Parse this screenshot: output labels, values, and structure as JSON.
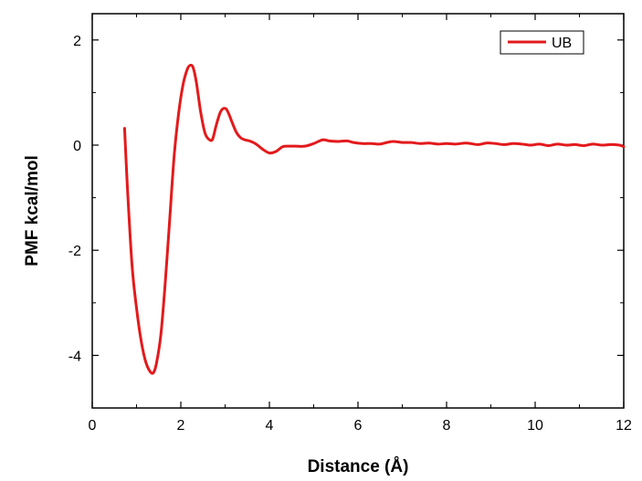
{
  "chart_data": {
    "type": "line",
    "xlabel": "Distance (Å)",
    "ylabel": "PMF kcal/mol",
    "xlim": [
      0,
      12
    ],
    "ylim": [
      -5,
      2.5
    ],
    "x_ticks": [
      0,
      2,
      4,
      6,
      8,
      10,
      12
    ],
    "y_ticks": [
      2,
      0,
      -2,
      -4
    ],
    "grid": false,
    "legend_position": "top-right",
    "line_color": "#e31a1c",
    "series": [
      {
        "name": "UB",
        "x": [
          0.73,
          0.8,
          0.9,
          1.0,
          1.1,
          1.2,
          1.3,
          1.38,
          1.45,
          1.55,
          1.65,
          1.75,
          1.85,
          1.95,
          2.05,
          2.15,
          2.22,
          2.28,
          2.35,
          2.45,
          2.55,
          2.65,
          2.72,
          2.8,
          2.9,
          3.0,
          3.07,
          3.15,
          3.25,
          3.35,
          3.45,
          3.55,
          3.7,
          3.85,
          4.0,
          4.15,
          4.3,
          4.45,
          4.6,
          4.8,
          5.0,
          5.2,
          5.35,
          5.55,
          5.75,
          5.9,
          6.1,
          6.3,
          6.5,
          6.65,
          6.8,
          7.0,
          7.2,
          7.4,
          7.6,
          7.8,
          8.0,
          8.2,
          8.45,
          8.7,
          8.9,
          9.1,
          9.3,
          9.5,
          9.7,
          9.9,
          10.1,
          10.3,
          10.5,
          10.7,
          10.9,
          11.1,
          11.3,
          11.5,
          11.7,
          11.9,
          12.0
        ],
        "y": [
          0.32,
          -0.9,
          -2.3,
          -3.1,
          -3.7,
          -4.1,
          -4.3,
          -4.33,
          -4.15,
          -3.6,
          -2.6,
          -1.4,
          -0.2,
          0.6,
          1.15,
          1.45,
          1.52,
          1.47,
          1.2,
          0.62,
          0.22,
          0.1,
          0.12,
          0.38,
          0.64,
          0.7,
          0.62,
          0.45,
          0.25,
          0.14,
          0.1,
          0.08,
          0.02,
          -0.08,
          -0.15,
          -0.12,
          -0.03,
          -0.02,
          -0.02,
          -0.02,
          0.03,
          0.1,
          0.08,
          0.07,
          0.08,
          0.05,
          0.03,
          0.03,
          0.02,
          0.05,
          0.07,
          0.05,
          0.05,
          0.03,
          0.04,
          0.02,
          0.03,
          0.02,
          0.04,
          0.01,
          0.04,
          0.03,
          0.01,
          0.03,
          0.02,
          0.0,
          0.02,
          -0.01,
          0.02,
          0.0,
          0.01,
          -0.01,
          0.02,
          0.0,
          0.01,
          0.0,
          -0.03
        ]
      }
    ]
  }
}
